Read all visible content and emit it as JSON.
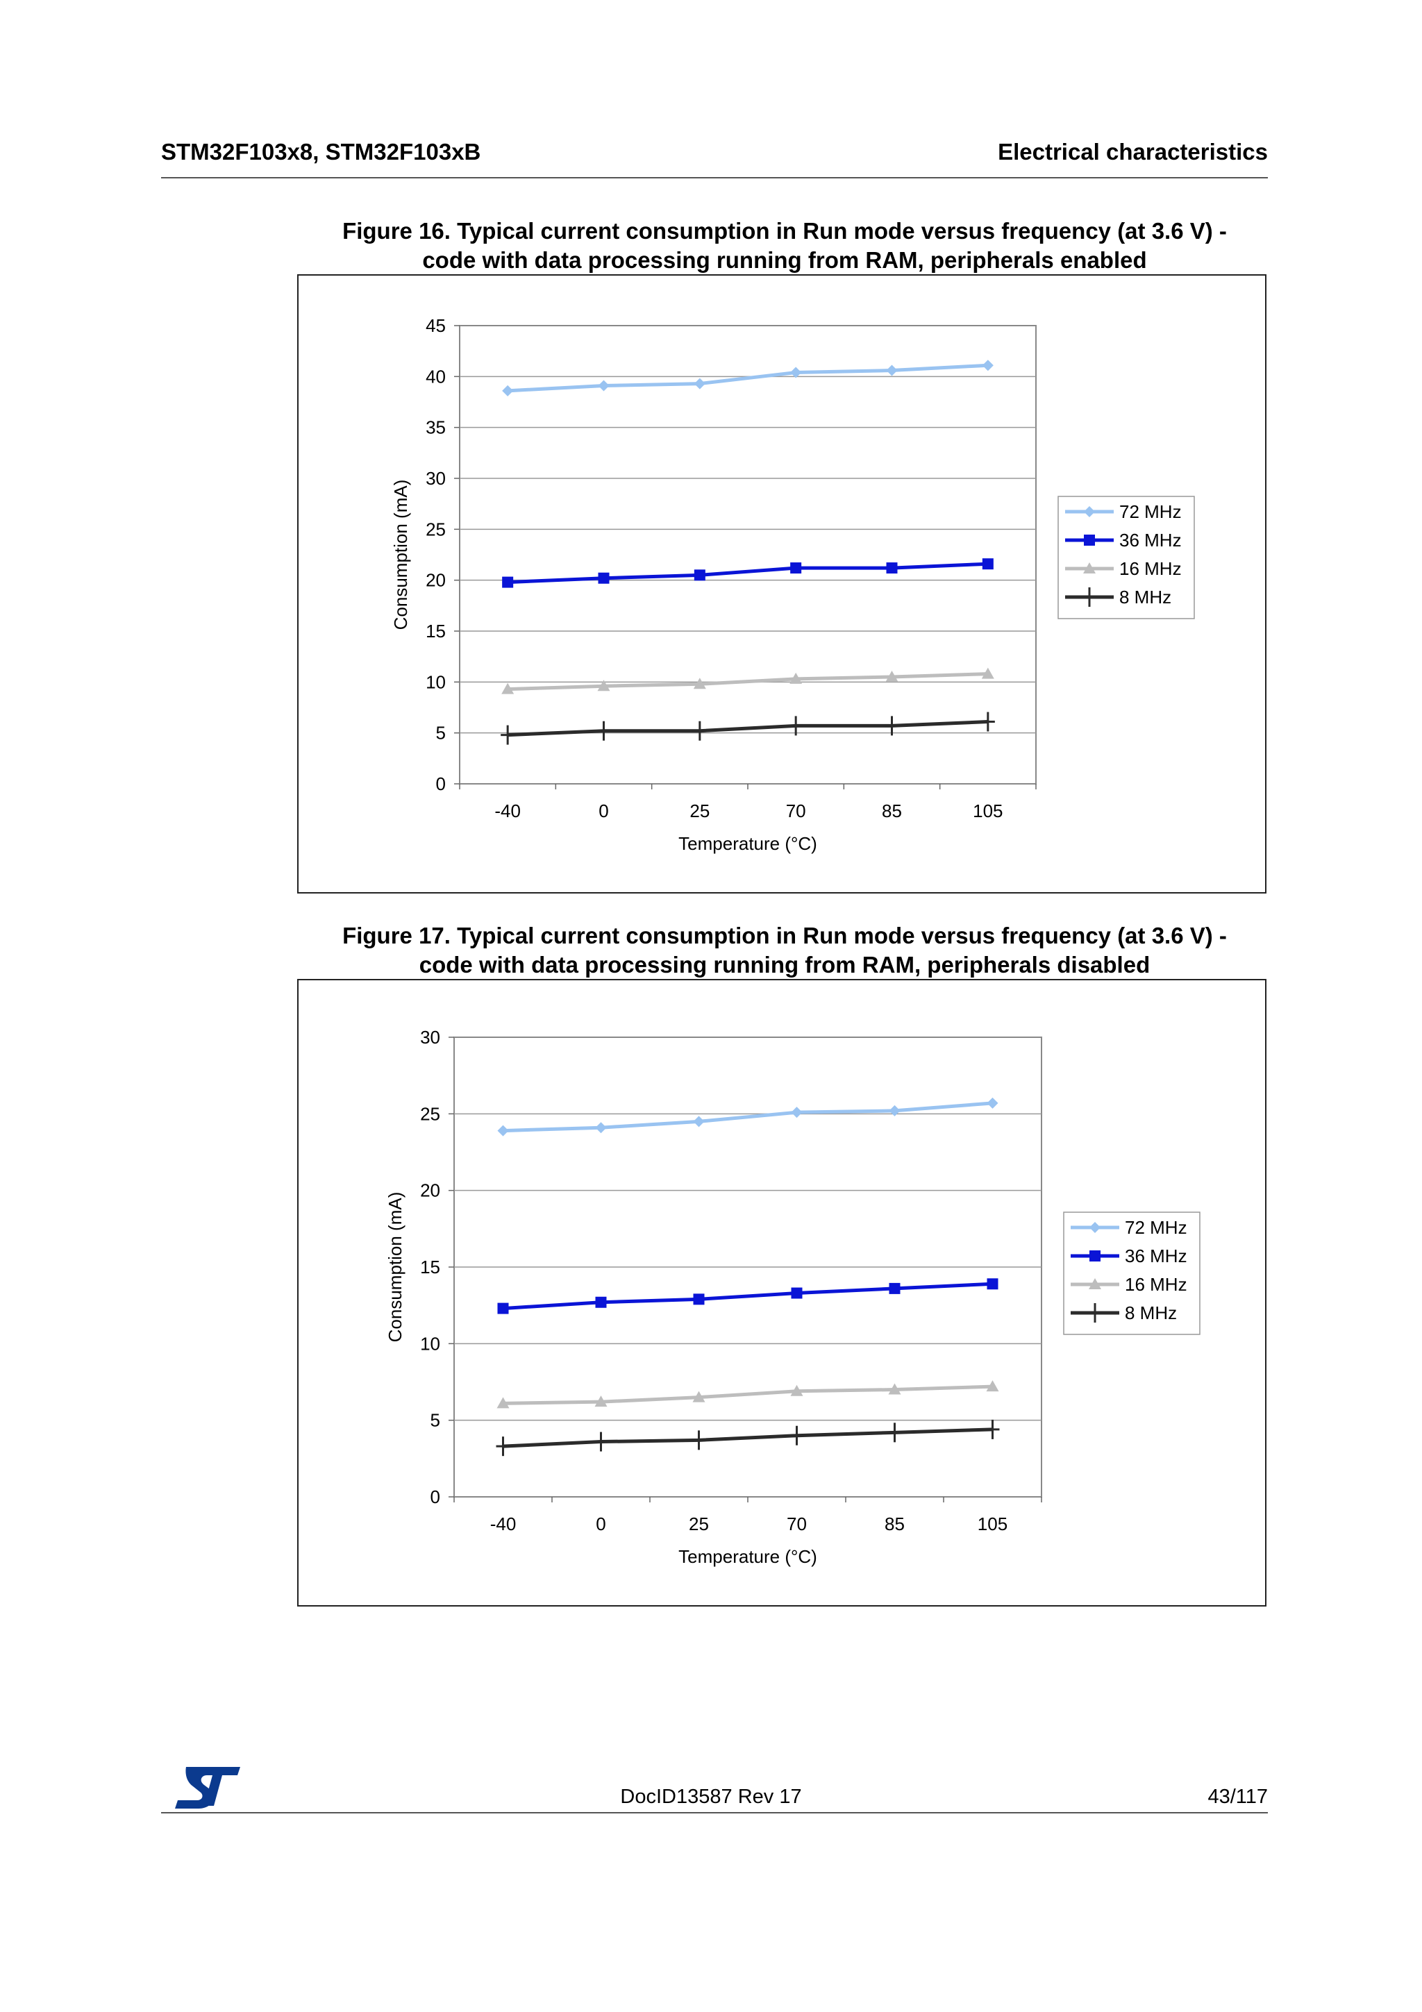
{
  "header": {
    "left": "STM32F103x8, STM32F103xB",
    "right": "Electrical characteristics"
  },
  "figures": [
    {
      "caption_line1": "Figure 16. Typical current consumption in Run mode versus frequency (at 3.6 V) -",
      "caption_line2": "code with data processing running from RAM, peripherals enabled"
    },
    {
      "caption_line1": "Figure 17. Typical current consumption in Run mode versus frequency (at 3.6 V) -",
      "caption_line2": "code with data processing running from RAM, peripherals disabled"
    }
  ],
  "chart_data": [
    {
      "type": "line",
      "title": "Figure 16. Typical current consumption in Run mode versus frequency (at 3.6 V) - code with data processing running from RAM, peripherals enabled",
      "xlabel": "Temperature (°C)",
      "ylabel": "Consumption (mA)",
      "categories": [
        "-40",
        "0",
        "25",
        "70",
        "85",
        "105"
      ],
      "ylim": [
        0,
        45
      ],
      "yticks": [
        "0",
        "5",
        "10",
        "15",
        "20",
        "25",
        "30",
        "35",
        "40",
        "45"
      ],
      "grid": "horizontal",
      "legend_position": "right",
      "series": [
        {
          "name": "72 MHz",
          "values": [
            38.6,
            39.1,
            39.3,
            40.4,
            40.6,
            41.1
          ],
          "color": "#99c3f1",
          "marker": "diamond"
        },
        {
          "name": "36 MHz",
          "values": [
            19.8,
            20.2,
            20.5,
            21.2,
            21.2,
            21.6
          ],
          "color": "#0a14d6",
          "marker": "square"
        },
        {
          "name": "16 MHz",
          "values": [
            9.3,
            9.6,
            9.8,
            10.3,
            10.5,
            10.8
          ],
          "color": "#bdbdbd",
          "marker": "triangle"
        },
        {
          "name": "8 MHz",
          "values": [
            4.8,
            5.2,
            5.2,
            5.7,
            5.7,
            6.1
          ],
          "color": "#2b2b2b",
          "marker": "plus"
        }
      ]
    },
    {
      "type": "line",
      "title": "Figure 17. Typical current consumption in Run mode versus frequency (at 3.6 V) - code with data processing running from RAM, peripherals disabled",
      "xlabel": "Temperature (°C)",
      "ylabel": "Consumption (mA)",
      "categories": [
        "-40",
        "0",
        "25",
        "70",
        "85",
        "105"
      ],
      "ylim": [
        0,
        30
      ],
      "yticks": [
        "0",
        "5",
        "10",
        "15",
        "20",
        "25",
        "30"
      ],
      "grid": "horizontal",
      "legend_position": "right",
      "series": [
        {
          "name": "72 MHz",
          "values": [
            23.9,
            24.1,
            24.5,
            25.1,
            25.2,
            25.7
          ],
          "color": "#99c3f1",
          "marker": "diamond"
        },
        {
          "name": "36 MHz",
          "values": [
            12.3,
            12.7,
            12.9,
            13.3,
            13.6,
            13.9
          ],
          "color": "#0a14d6",
          "marker": "square"
        },
        {
          "name": "16 MHz",
          "values": [
            6.1,
            6.2,
            6.5,
            6.9,
            7.0,
            7.2
          ],
          "color": "#bdbdbd",
          "marker": "triangle"
        },
        {
          "name": "8 MHz",
          "values": [
            3.3,
            3.6,
            3.7,
            4.0,
            4.2,
            4.4
          ],
          "color": "#2b2b2b",
          "marker": "plus"
        }
      ]
    }
  ],
  "footer": {
    "doc_id": "DocID13587 Rev 17",
    "page": "43/117",
    "logo_icon": "st-logo-icon"
  }
}
